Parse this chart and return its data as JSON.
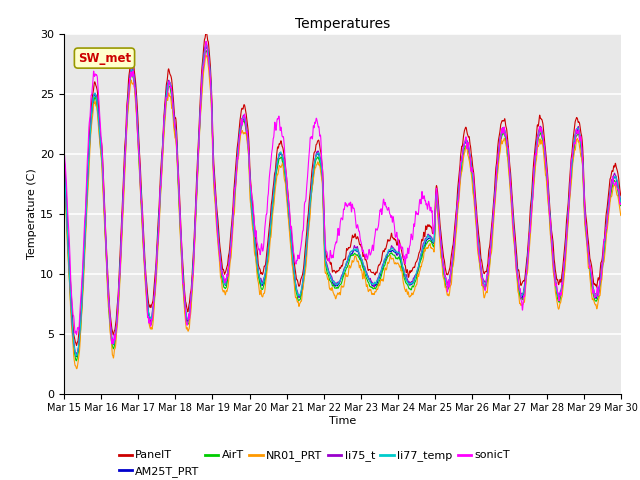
{
  "title": "Temperatures",
  "xlabel": "Time",
  "ylabel": "Temperature (C)",
  "ylim": [
    0,
    30
  ],
  "xtick_labels": [
    "Mar 15",
    "Mar 16",
    "Mar 17",
    "Mar 18",
    "Mar 19",
    "Mar 20",
    "Mar 21",
    "Mar 22",
    "Mar 23",
    "Mar 24",
    "Mar 25",
    "Mar 26",
    "Mar 27",
    "Mar 28",
    "Mar 29",
    "Mar 30"
  ],
  "series_colors": {
    "PanelT": "#cc0000",
    "AM25T_PRT": "#0000cc",
    "AirT": "#00cc00",
    "NR01_PRT": "#ff9900",
    "li75_t": "#9900cc",
    "li77_temp": "#00cccc",
    "sonicT": "#ff00ff"
  },
  "legend_labels": [
    "PanelT",
    "AM25T_PRT",
    "AirT",
    "NR01_PRT",
    "li75_t",
    "li77_temp",
    "sonicT"
  ],
  "annotation_text": "SW_met",
  "annotation_color": "#cc0000",
  "annotation_bg": "#ffffcc",
  "annotation_border": "#999900",
  "bg_color": "#e8e8e8",
  "title_fontsize": 10,
  "axis_fontsize": 8,
  "legend_fontsize": 8,
  "linewidth": 0.8
}
